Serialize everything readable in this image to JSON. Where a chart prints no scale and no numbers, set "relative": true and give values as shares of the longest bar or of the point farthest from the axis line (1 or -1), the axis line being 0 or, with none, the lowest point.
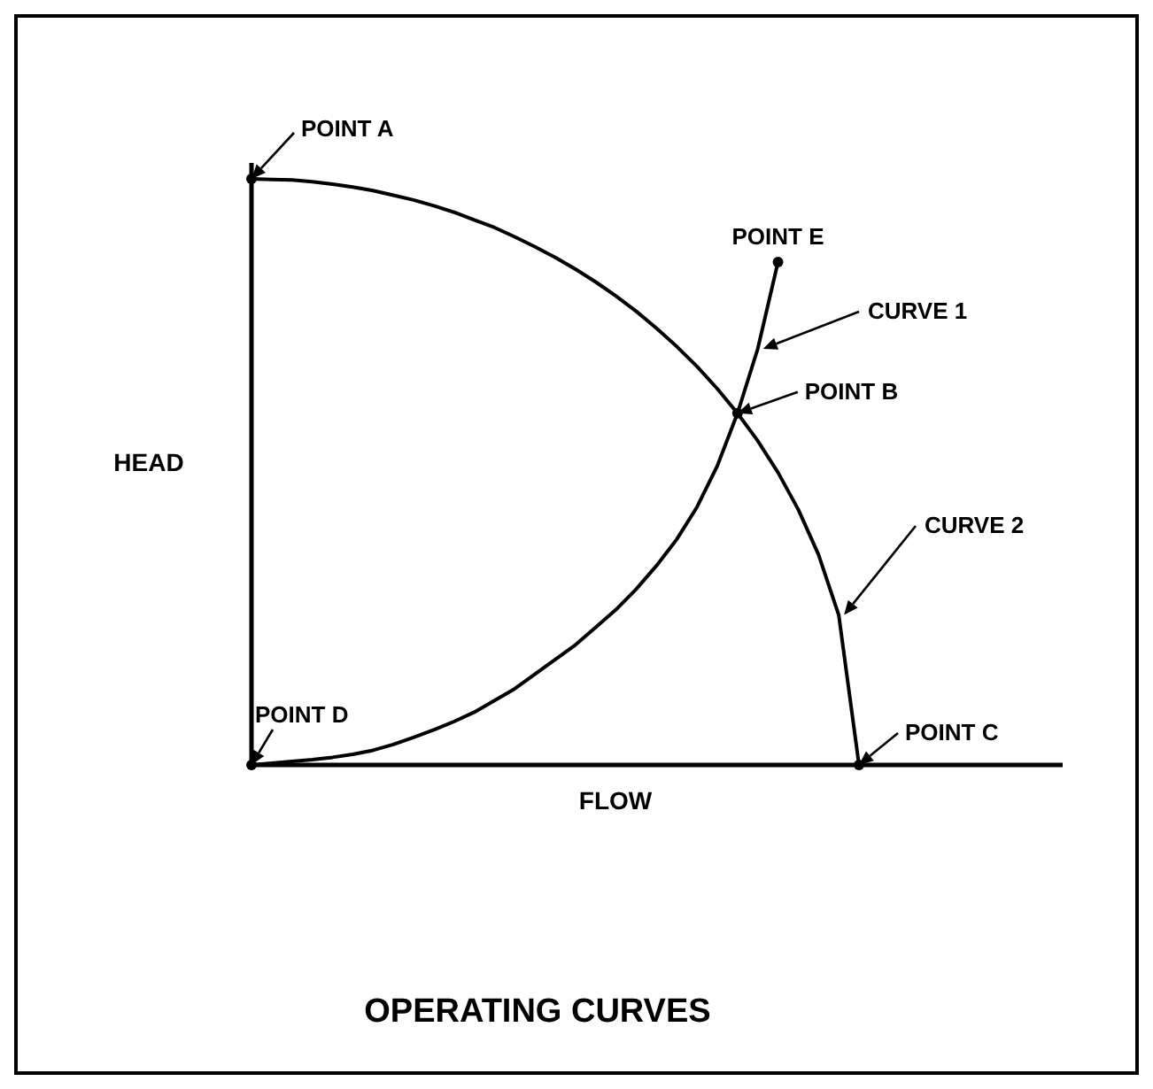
{
  "chart_data": {
    "type": "line",
    "relative": true,
    "title": "OPERATING CURVES",
    "xlabel": "FLOW",
    "ylabel": "HEAD",
    "marker": "none",
    "line_style": "solid",
    "categories": [
      null,
      null,
      null,
      null,
      null,
      null,
      null,
      null,
      null,
      null,
      null,
      null,
      null,
      null,
      null,
      null,
      null,
      null,
      null,
      null,
      null,
      null,
      null,
      null,
      null,
      null,
      null,
      null,
      null,
      null,
      null
    ],
    "series": [
      {
        "name": "CURVE 1",
        "color": "#000000",
        "values": [
          0,
          0.003,
          0.006,
          0.009,
          0.013,
          0.018,
          0.025,
          0.035,
          0.047,
          0.06,
          0.074,
          0.09,
          0.11,
          0.13,
          0.155,
          0.18,
          0.205,
          0.235,
          0.265,
          0.3,
          0.34,
          0.385,
          0.44,
          0.51,
          0.6,
          0.71,
          0.858,
          null,
          null,
          null,
          null
        ]
      },
      {
        "name": "CURVE 2",
        "color": "#000000",
        "values": [
          1,
          0.999,
          0.998,
          0.995,
          0.991,
          0.986,
          0.98,
          0.972,
          0.964,
          0.954,
          0.943,
          0.93,
          0.917,
          0.901,
          0.884,
          0.866,
          0.846,
          0.824,
          0.8,
          0.774,
          0.745,
          0.714,
          0.68,
          0.642,
          0.6,
          0.553,
          0.499,
          0.436,
          0.359,
          0.256,
          0
        ]
      }
    ],
    "annotations": [
      "POINT A",
      "POINT B",
      "POINT C",
      "POINT D",
      "POINT E"
    ]
  }
}
